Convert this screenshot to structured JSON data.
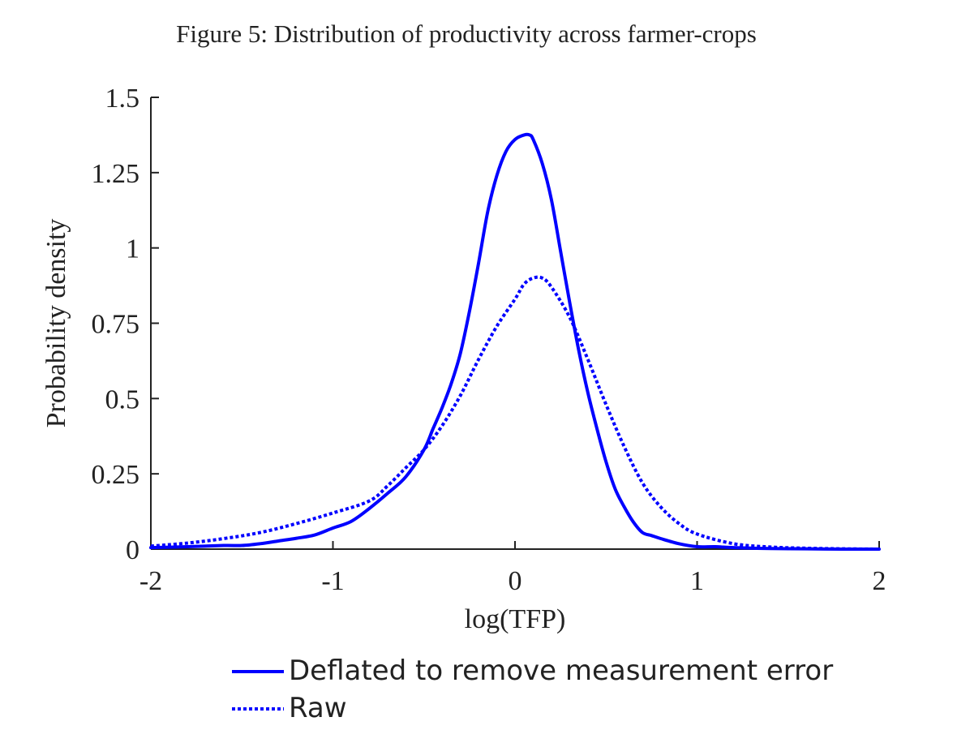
{
  "figure": {
    "caption": "Figure 5: Distribution of productivity across farmer-crops"
  },
  "chart_data": {
    "type": "line",
    "title": "Figure 5: Distribution of productivity across farmer-crops",
    "xlabel": "log(TFP)",
    "ylabel": "Probability density",
    "xlim": [
      -2,
      2
    ],
    "ylim": [
      0,
      1.5
    ],
    "xticks": [
      -2,
      -1,
      0,
      1,
      2
    ],
    "xtick_labels": [
      "-2",
      "-1",
      "0",
      "1",
      "2"
    ],
    "yticks": [
      0,
      0.25,
      0.5,
      0.75,
      1,
      1.25,
      1.5
    ],
    "ytick_labels": [
      "0",
      "0.25",
      "0.5",
      "0.75",
      "1",
      "1.25",
      "1.5"
    ],
    "grid": false,
    "legend_position": "below",
    "line_color": "#0000ff",
    "series": [
      {
        "name": "Deflated to remove measurement error",
        "style": "solid",
        "x": [
          -2.0,
          -1.8,
          -1.6,
          -1.5,
          -1.4,
          -1.3,
          -1.2,
          -1.1,
          -1.0,
          -0.9,
          -0.8,
          -0.7,
          -0.6,
          -0.5,
          -0.45,
          -0.4,
          -0.35,
          -0.3,
          -0.25,
          -0.2,
          -0.15,
          -0.1,
          -0.05,
          0.0,
          0.05,
          0.08,
          0.1,
          0.15,
          0.2,
          0.25,
          0.3,
          0.35,
          0.4,
          0.45,
          0.5,
          0.55,
          0.6,
          0.65,
          0.7,
          0.75,
          0.8,
          0.9,
          1.0,
          1.1,
          1.2,
          1.4,
          1.6,
          1.8,
          2.0
        ],
        "y": [
          0.005,
          0.008,
          0.012,
          0.012,
          0.018,
          0.027,
          0.036,
          0.047,
          0.07,
          0.092,
          0.135,
          0.185,
          0.24,
          0.33,
          0.4,
          0.47,
          0.55,
          0.65,
          0.79,
          0.95,
          1.12,
          1.24,
          1.32,
          1.36,
          1.375,
          1.375,
          1.36,
          1.28,
          1.16,
          0.99,
          0.82,
          0.66,
          0.52,
          0.4,
          0.29,
          0.2,
          0.14,
          0.09,
          0.055,
          0.045,
          0.035,
          0.018,
          0.008,
          0.008,
          0.005,
          0.002,
          0.001,
          0.0,
          0.0
        ]
      },
      {
        "name": "Raw",
        "style": "dotted",
        "x": [
          -2.0,
          -1.8,
          -1.6,
          -1.4,
          -1.2,
          -1.0,
          -0.8,
          -0.7,
          -0.6,
          -0.5,
          -0.4,
          -0.3,
          -0.2,
          -0.1,
          0.0,
          0.05,
          0.1,
          0.15,
          0.2,
          0.3,
          0.4,
          0.5,
          0.6,
          0.7,
          0.8,
          0.9,
          1.0,
          1.2,
          1.4,
          1.6,
          1.8,
          2.0
        ],
        "y": [
          0.01,
          0.02,
          0.035,
          0.055,
          0.085,
          0.12,
          0.16,
          0.21,
          0.27,
          0.33,
          0.41,
          0.51,
          0.63,
          0.74,
          0.83,
          0.88,
          0.9,
          0.9,
          0.87,
          0.77,
          0.63,
          0.48,
          0.34,
          0.22,
          0.14,
          0.085,
          0.05,
          0.018,
          0.007,
          0.003,
          0.001,
          0.0
        ]
      }
    ]
  }
}
